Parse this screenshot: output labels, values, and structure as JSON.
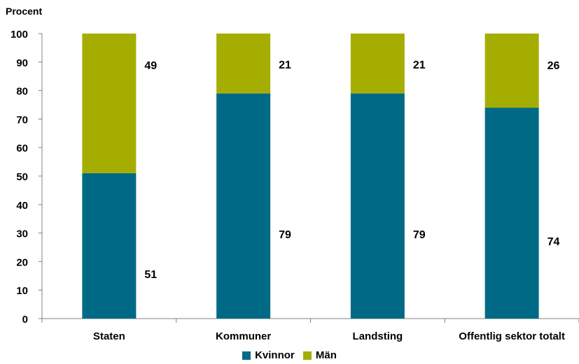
{
  "chart_data": {
    "type": "bar",
    "stacked": true,
    "ylabel": "Procent",
    "xlabel": "",
    "ylim": [
      0,
      100
    ],
    "yticks": [
      0,
      10,
      20,
      30,
      40,
      50,
      60,
      70,
      80,
      90,
      100
    ],
    "categories": [
      "Staten",
      "Kommuner",
      "Landsting",
      "Offentlig sektor totalt"
    ],
    "series": [
      {
        "name": "Kvinnor",
        "color": "#006A86",
        "values": [
          51,
          79,
          79,
          74
        ]
      },
      {
        "name": "Män",
        "color": "#A5AE00",
        "values": [
          49,
          21,
          21,
          26
        ]
      }
    ],
    "legend": "bottom-center",
    "grid": false
  }
}
